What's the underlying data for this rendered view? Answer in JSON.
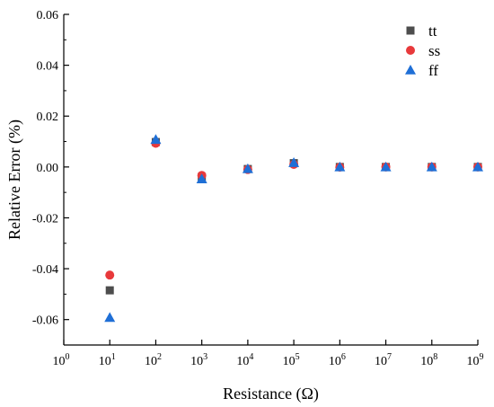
{
  "chart_data": {
    "type": "scatter",
    "xlabel": "Resistance (Ω)",
    "ylabel": "Relative Error (%)",
    "xscale": "log",
    "xlim": [
      1,
      1000000000
    ],
    "ylim": [
      -0.07,
      0.06
    ],
    "x_ticks": [
      {
        "value": 1,
        "base": "10",
        "exp": "0"
      },
      {
        "value": 10,
        "base": "10",
        "exp": "1"
      },
      {
        "value": 100,
        "base": "10",
        "exp": "2"
      },
      {
        "value": 1000,
        "base": "10",
        "exp": "3"
      },
      {
        "value": 10000,
        "base": "10",
        "exp": "4"
      },
      {
        "value": 100000,
        "base": "10",
        "exp": "5"
      },
      {
        "value": 1000000,
        "base": "10",
        "exp": "6"
      },
      {
        "value": 10000000,
        "base": "10",
        "exp": "7"
      },
      {
        "value": 100000000,
        "base": "10",
        "exp": "8"
      },
      {
        "value": 1000000000,
        "base": "10",
        "exp": "9"
      }
    ],
    "y_ticks": [
      {
        "value": -0.06,
        "label": "-0.06"
      },
      {
        "value": -0.04,
        "label": "-0.04"
      },
      {
        "value": -0.02,
        "label": "-0.02"
      },
      {
        "value": 0.0,
        "label": "0.00"
      },
      {
        "value": 0.02,
        "label": "0.02"
      },
      {
        "value": 0.04,
        "label": "0.04"
      },
      {
        "value": 0.06,
        "label": "0.06"
      }
    ],
    "grid": false,
    "legend_position": "top-right",
    "x": [
      10,
      100,
      1000,
      10000,
      100000,
      1000000,
      10000000,
      100000000,
      1000000000
    ],
    "series": [
      {
        "name": "tt",
        "marker": "square",
        "color": "#4d4d4d",
        "values": [
          -0.0485,
          0.0098,
          -0.004,
          -0.0008,
          0.0015,
          0.0,
          0.0,
          0.0,
          0.0
        ]
      },
      {
        "name": "ss",
        "marker": "circle",
        "color": "#e8393b",
        "values": [
          -0.0425,
          0.0093,
          -0.0033,
          -0.001,
          0.001,
          -0.0001,
          0.0,
          0.0,
          0.0
        ]
      },
      {
        "name": "ff",
        "marker": "triangle",
        "color": "#1f6fd6",
        "values": [
          -0.0592,
          0.0108,
          -0.0047,
          -0.0007,
          0.0017,
          0.0,
          0.0,
          0.0,
          0.0
        ]
      }
    ]
  }
}
